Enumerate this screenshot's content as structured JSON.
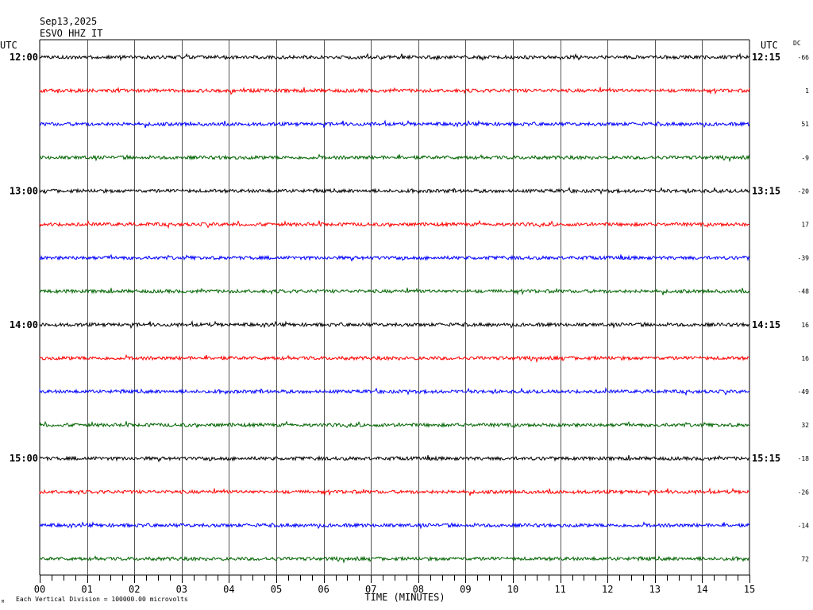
{
  "header": {
    "date": "Sep13,2025",
    "station": "ESVO HHZ IT"
  },
  "labels": {
    "utc_left": "UTC",
    "utc_right": "UTC",
    "dc": "DC",
    "scale_note": "Each Vertical Division = 100000.00 microvolts",
    "corner_mark": "M"
  },
  "colors": {
    "background": "#ffffff",
    "grid": "#000000",
    "text": "#000000",
    "trace_cycle": [
      "#000000",
      "#ff0000",
      "#0000ff",
      "#006400"
    ]
  },
  "chart_data": {
    "type": "line",
    "title": "",
    "xlabel": "TIME (MINUTES)",
    "ylabel": "",
    "xlim": [
      0,
      15
    ],
    "x_ticks": [
      "00",
      "01",
      "02",
      "03",
      "04",
      "05",
      "06",
      "07",
      "08",
      "09",
      "10",
      "11",
      "12",
      "13",
      "14",
      "15"
    ],
    "left_time_labels": [
      {
        "row": 0,
        "text": "12:00"
      },
      {
        "row": 4,
        "text": "13:00"
      },
      {
        "row": 8,
        "text": "14:00"
      },
      {
        "row": 12,
        "text": "15:00"
      }
    ],
    "right_time_labels": [
      {
        "row": 0,
        "text": "12:15"
      },
      {
        "row": 4,
        "text": "13:15"
      },
      {
        "row": 8,
        "text": "14:15"
      },
      {
        "row": 12,
        "text": "15:15"
      }
    ],
    "series": [
      {
        "dc": "-66"
      },
      {
        "dc": "1"
      },
      {
        "dc": "51"
      },
      {
        "dc": "-9"
      },
      {
        "dc": "-20"
      },
      {
        "dc": "17"
      },
      {
        "dc": "-39"
      },
      {
        "dc": "-48"
      },
      {
        "dc": "16"
      },
      {
        "dc": "16"
      },
      {
        "dc": "-49"
      },
      {
        "dc": "32"
      },
      {
        "dc": "-18"
      },
      {
        "dc": "-26"
      },
      {
        "dc": "-14"
      },
      {
        "dc": "72"
      }
    ],
    "grid": true
  }
}
